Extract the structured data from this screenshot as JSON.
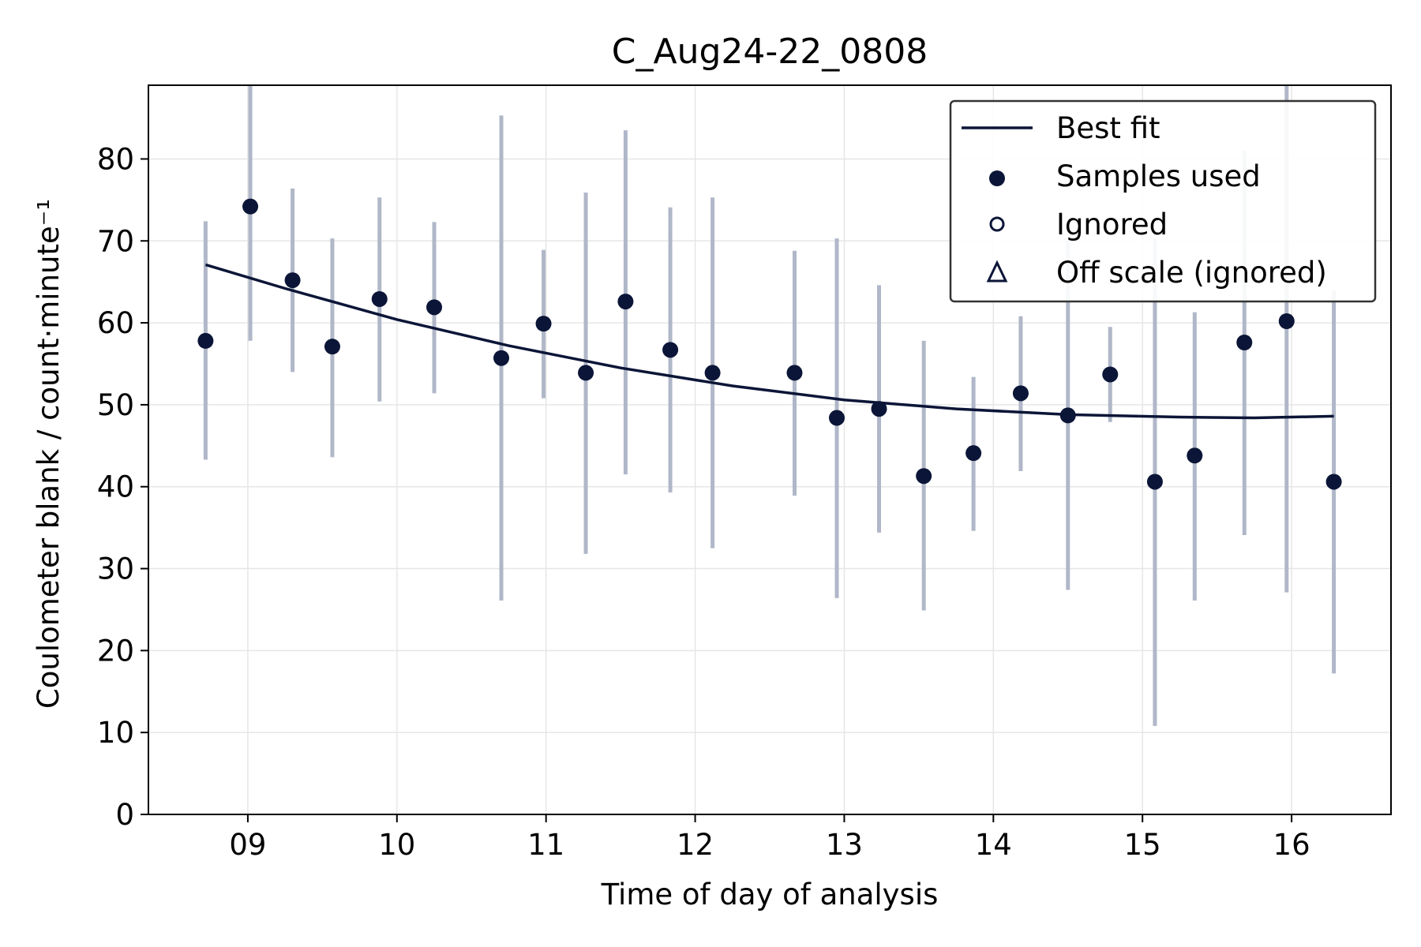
{
  "chart_data": {
    "type": "scatter",
    "title": "C_Aug24-22_0808",
    "xlabel": "Time of day of analysis",
    "ylabel": "Coulometer blank / count·minute⁻¹",
    "xlim": [
      "08:20",
      "16:40"
    ],
    "ylim": [
      0,
      89
    ],
    "x_ticks": [
      "09",
      "10",
      "11",
      "12",
      "13",
      "14",
      "15",
      "16"
    ],
    "y_ticks": [
      0,
      10,
      20,
      30,
      40,
      50,
      60,
      70,
      80
    ],
    "grid": true,
    "legend_position": "top-right",
    "legend": [
      "Best fit",
      "Samples used",
      "Ignored",
      "Off scale (ignored)"
    ],
    "colors": {
      "points": "#0b1537",
      "errorbars": "#b0b7c8",
      "fit": "#0b1537",
      "grid": "#e6e6e6"
    },
    "series": [
      {
        "name": "Samples used",
        "points": [
          {
            "x": "08:43",
            "y": 57.8,
            "err_low": 43.3,
            "err_high": 72.4
          },
          {
            "x": "09:01",
            "y": 74.2,
            "err_low": 57.8,
            "err_high": 95.0
          },
          {
            "x": "09:18",
            "y": 65.2,
            "err_low": 54.0,
            "err_high": 76.4
          },
          {
            "x": "09:34",
            "y": 57.1,
            "err_low": 43.6,
            "err_high": 70.3
          },
          {
            "x": "09:53",
            "y": 62.9,
            "err_low": 50.4,
            "err_high": 75.3
          },
          {
            "x": "10:15",
            "y": 61.9,
            "err_low": 51.4,
            "err_high": 72.3
          },
          {
            "x": "10:42",
            "y": 55.7,
            "err_low": 26.1,
            "err_high": 85.3
          },
          {
            "x": "10:59",
            "y": 59.9,
            "err_low": 50.8,
            "err_high": 68.9
          },
          {
            "x": "11:16",
            "y": 53.9,
            "err_low": 31.8,
            "err_high": 75.9
          },
          {
            "x": "11:32",
            "y": 62.6,
            "err_low": 41.5,
            "err_high": 83.5
          },
          {
            "x": "11:50",
            "y": 56.7,
            "err_low": 39.3,
            "err_high": 74.1
          },
          {
            "x": "12:07",
            "y": 53.9,
            "err_low": 32.5,
            "err_high": 75.3
          },
          {
            "x": "12:40",
            "y": 53.9,
            "err_low": 38.9,
            "err_high": 68.8
          },
          {
            "x": "12:57",
            "y": 48.4,
            "err_low": 26.4,
            "err_high": 70.3
          },
          {
            "x": "13:14",
            "y": 49.5,
            "err_low": 34.4,
            "err_high": 64.6
          },
          {
            "x": "13:32",
            "y": 41.3,
            "err_low": 24.9,
            "err_high": 57.8
          },
          {
            "x": "13:52",
            "y": 44.1,
            "err_low": 34.6,
            "err_high": 53.4
          },
          {
            "x": "14:11",
            "y": 51.4,
            "err_low": 41.9,
            "err_high": 60.8
          },
          {
            "x": "14:30",
            "y": 48.7,
            "err_low": 27.4,
            "err_high": 70.0
          },
          {
            "x": "14:47",
            "y": 53.7,
            "err_low": 47.9,
            "err_high": 59.5
          },
          {
            "x": "15:05",
            "y": 40.6,
            "err_low": 10.8,
            "err_high": 70.3
          },
          {
            "x": "15:21",
            "y": 43.8,
            "err_low": 26.1,
            "err_high": 61.3
          },
          {
            "x": "15:41",
            "y": 57.6,
            "err_low": 34.1,
            "err_high": 81.0
          },
          {
            "x": "15:58",
            "y": 60.2,
            "err_low": 27.1,
            "err_high": 95.0
          },
          {
            "x": "16:17",
            "y": 40.6,
            "err_low": 17.2,
            "err_high": 64.0
          }
        ]
      },
      {
        "name": "Best fit",
        "points": [
          {
            "x": "08:43",
            "y": 67.1
          },
          {
            "x": "09:15",
            "y": 64.2
          },
          {
            "x": "10:00",
            "y": 60.4
          },
          {
            "x": "10:45",
            "y": 57.2
          },
          {
            "x": "11:30",
            "y": 54.5
          },
          {
            "x": "12:15",
            "y": 52.3
          },
          {
            "x": "13:00",
            "y": 50.6
          },
          {
            "x": "13:45",
            "y": 49.5
          },
          {
            "x": "14:30",
            "y": 48.8
          },
          {
            "x": "15:15",
            "y": 48.5
          },
          {
            "x": "15:45",
            "y": 48.4
          },
          {
            "x": "16:17",
            "y": 48.6
          }
        ]
      }
    ]
  }
}
